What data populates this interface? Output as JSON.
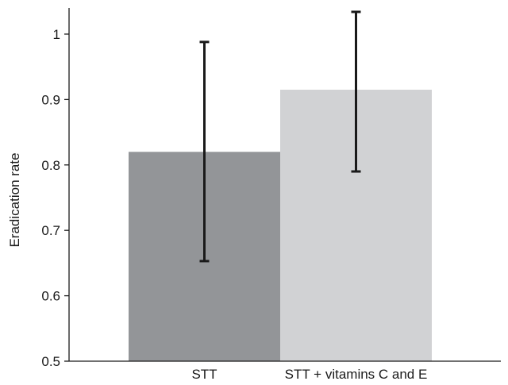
{
  "chart_data": {
    "type": "bar",
    "title": "",
    "xlabel": "",
    "ylabel": "Eradication rate",
    "ylim": [
      0.5,
      1.04
    ],
    "yticks": [
      0.5,
      0.6,
      0.7,
      0.8,
      0.9,
      1
    ],
    "ytick_labels": [
      "0.5",
      "0.6",
      "0.7",
      "0.8",
      "0.9",
      "1"
    ],
    "categories": [
      "STT",
      "STT + vitamins C and E"
    ],
    "values": [
      0.82,
      0.915
    ],
    "error_low": [
      0.653,
      0.79
    ],
    "error_high": [
      0.988,
      1.034
    ],
    "colors": [
      "#939598",
      "#d1d2d4"
    ],
    "grid": false,
    "legend": "none"
  }
}
